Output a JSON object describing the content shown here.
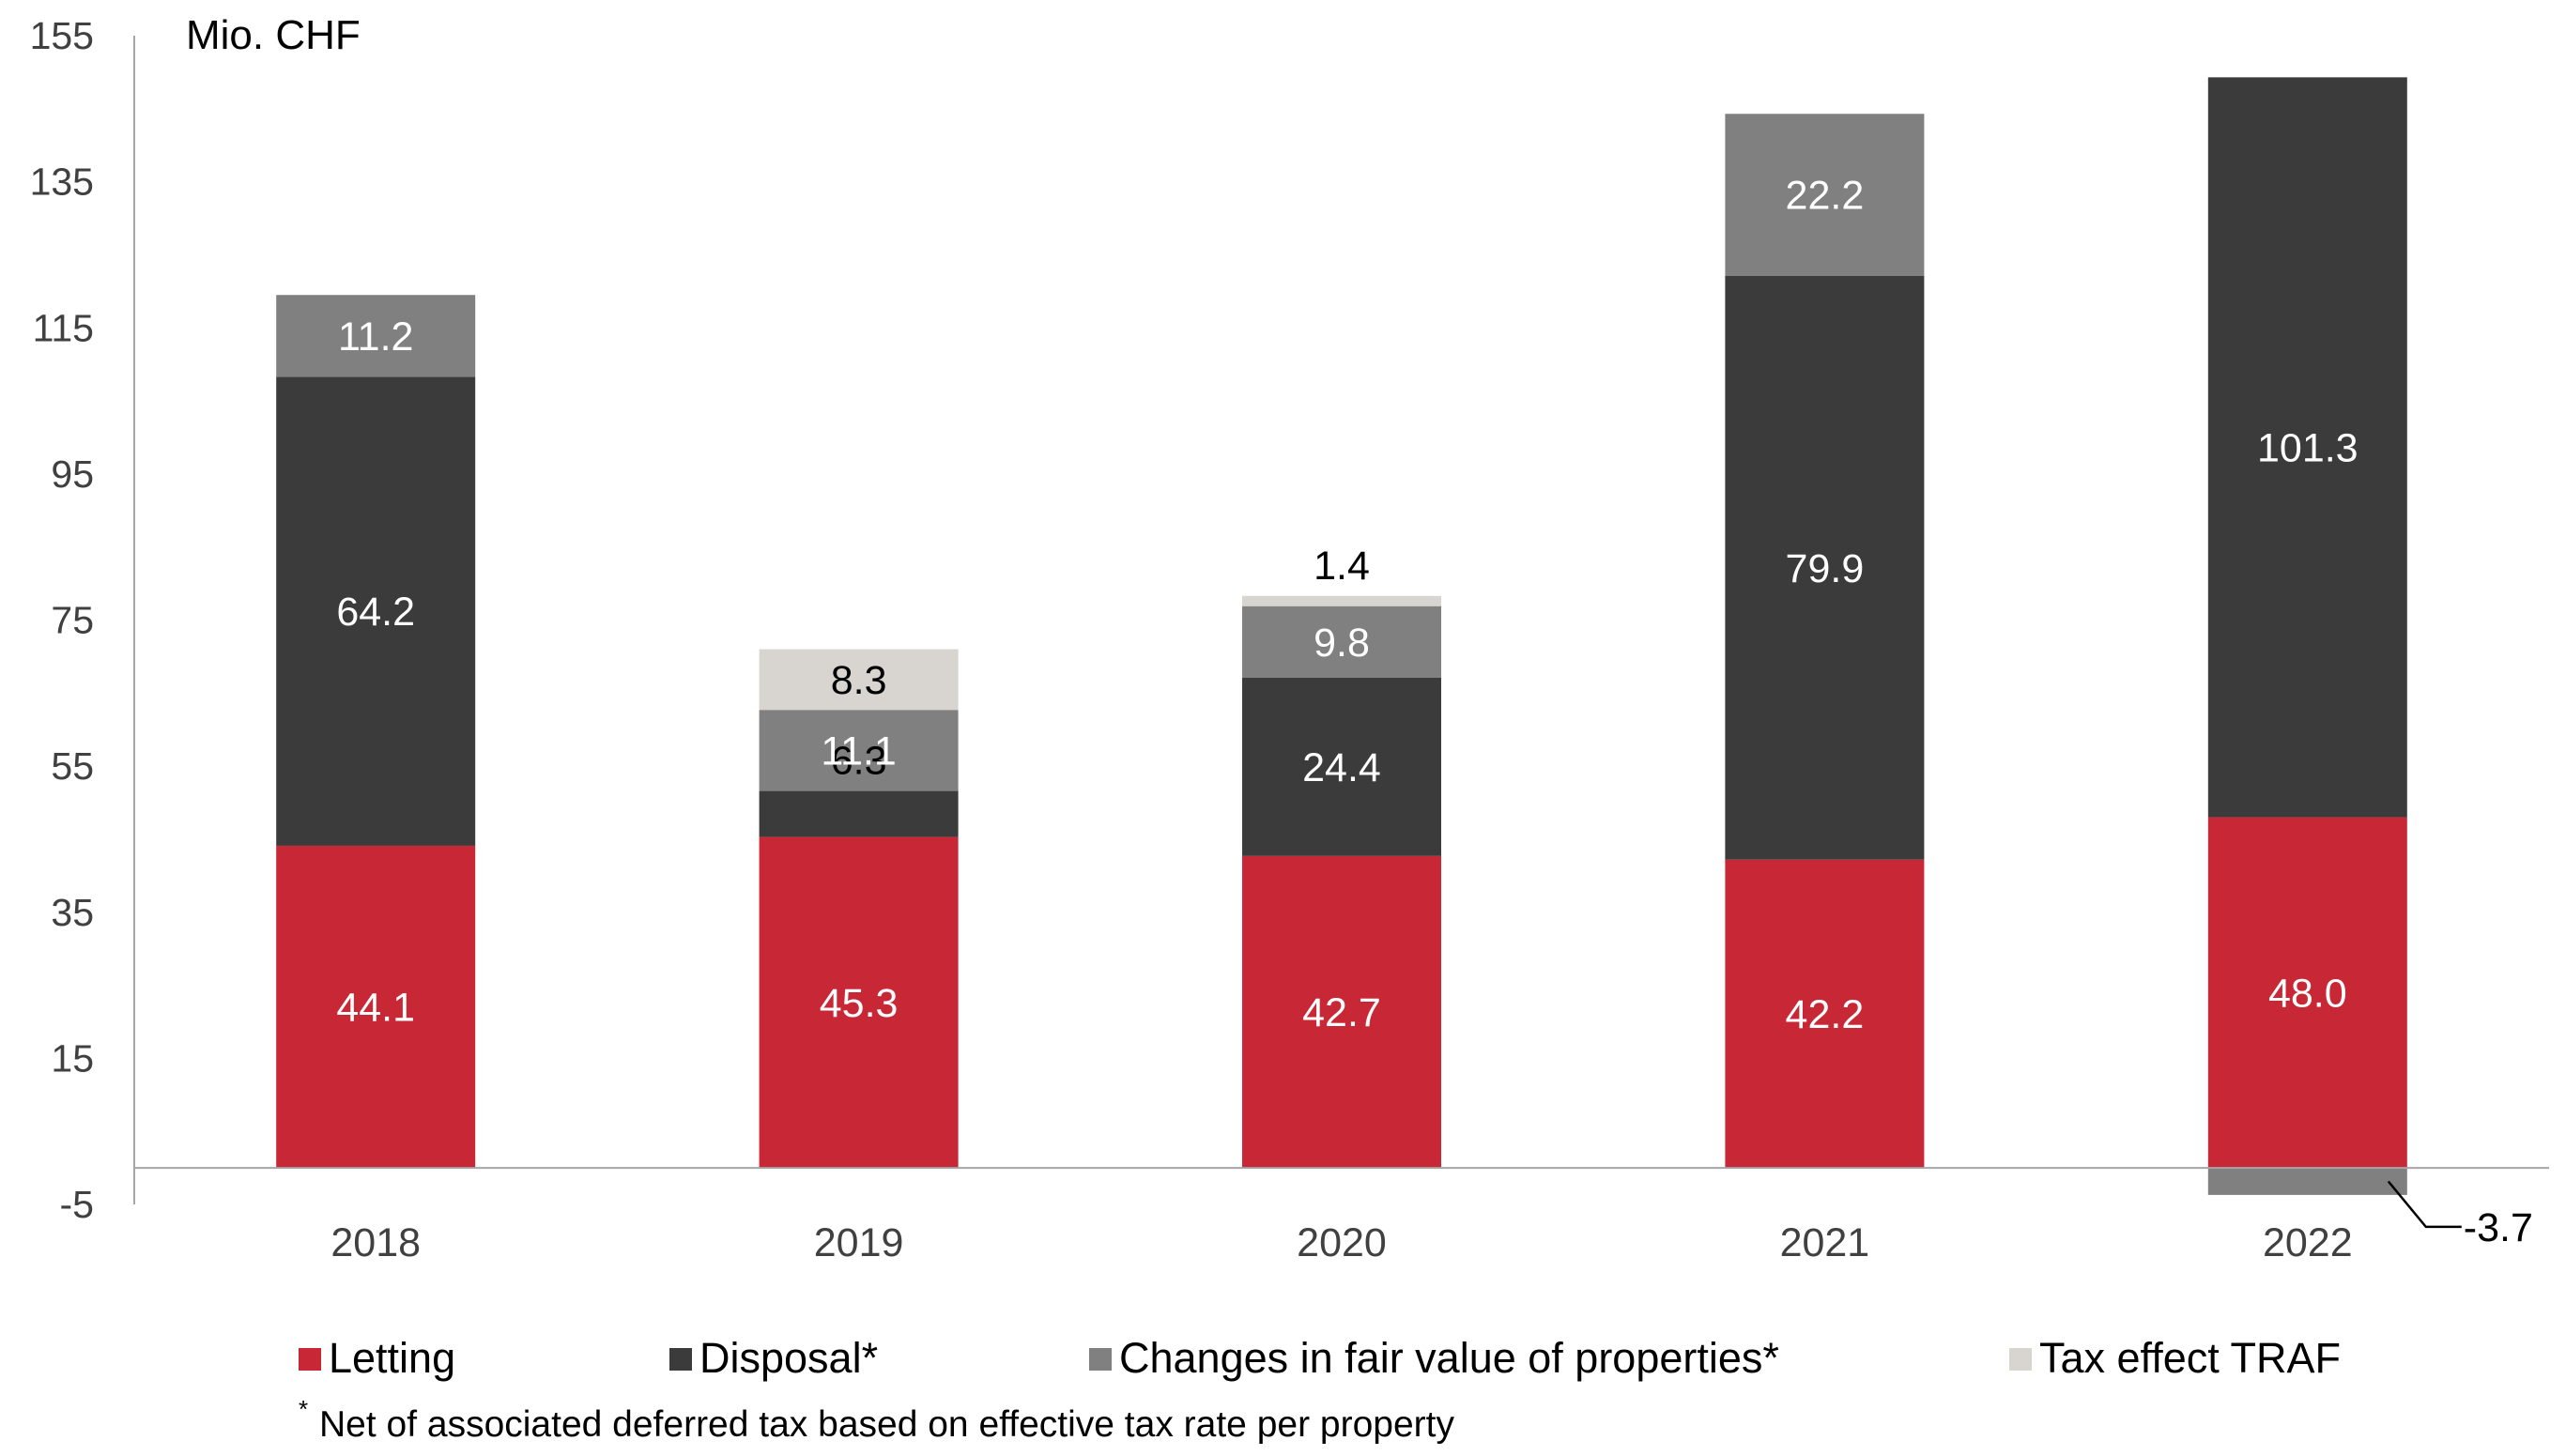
{
  "chart_data": {
    "type": "bar",
    "stacked": true,
    "unit_label": "Mio. CHF",
    "categories": [
      "2018",
      "2019",
      "2020",
      "2021",
      "2022"
    ],
    "series": [
      {
        "name": "Letting",
        "color": "#c82835",
        "values": [
          44.1,
          45.3,
          42.7,
          42.2,
          48.0
        ]
      },
      {
        "name": "Disposal*",
        "color": "#3b3b3b",
        "values": [
          64.2,
          6.3,
          24.4,
          79.9,
          101.3
        ]
      },
      {
        "name": "Changes in fair value of properties*",
        "color": "#808080",
        "values": [
          11.2,
          11.1,
          9.8,
          22.2,
          -3.7
        ]
      },
      {
        "name": "Tax effect TRAF",
        "color": "#d8d4cf",
        "values": [
          0,
          8.3,
          1.4,
          0,
          0
        ]
      }
    ],
    "data_labels": [
      [
        "44.1",
        "45.3",
        "42.7",
        "42.2",
        "48.0"
      ],
      [
        "64.2",
        "6.3",
        "24.4",
        "79.9",
        "101.3"
      ],
      [
        "11.2",
        "11.1",
        "9.8",
        "22.2",
        "-3.7"
      ],
      [
        "",
        "8.3",
        "1.4",
        "",
        ""
      ]
    ],
    "ylim": [
      -5,
      155
    ],
    "yticks": [
      "155",
      "135",
      "115",
      "95",
      "75",
      "55",
      "35",
      "15",
      "-5"
    ],
    "ytick_values": [
      155,
      135,
      115,
      95,
      75,
      55,
      35,
      15,
      -5
    ],
    "legend_position": "bottom",
    "grid": false
  },
  "footnote": {
    "marker": "*",
    "text": "Net of associated deferred tax based on effective tax rate per property"
  }
}
